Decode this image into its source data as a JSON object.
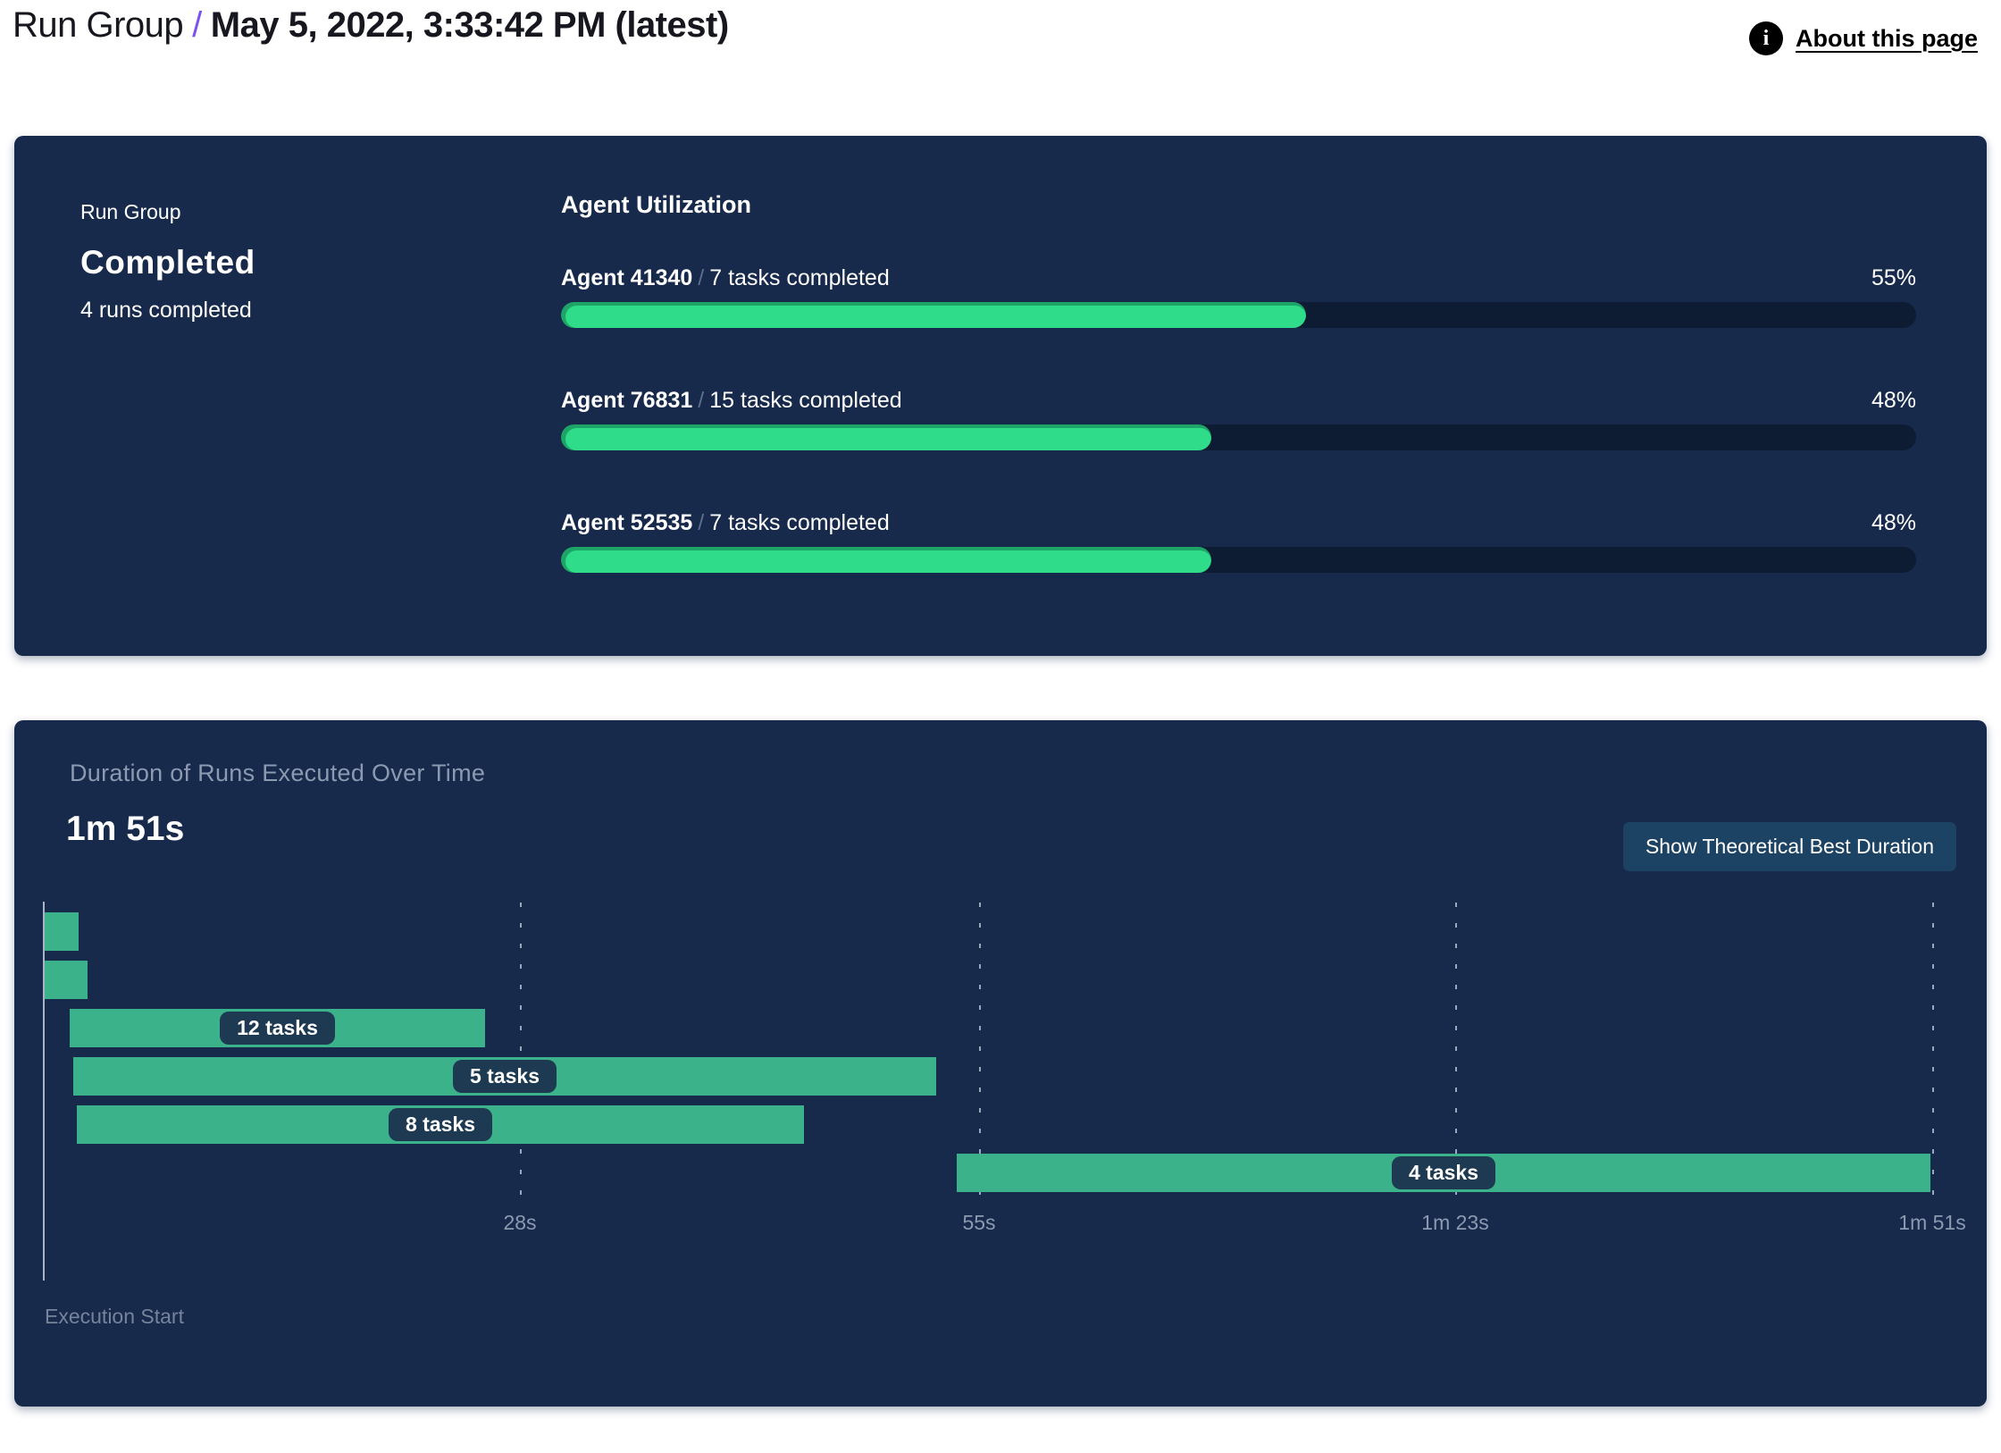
{
  "header": {
    "breadcrumb_root": "Run Group",
    "breadcrumb_sep": "/",
    "title": "May 5, 2022, 3:33:42 PM (latest)",
    "about_label": "About this page",
    "info_icon_glyph": "i"
  },
  "run_group_panel": {
    "label": "Run Group",
    "status": "Completed",
    "runs_completed": "4 runs completed",
    "utilization_title": "Agent Utilization",
    "agents": [
      {
        "name": "Agent 41340",
        "slash": "/",
        "tasks": "7 tasks completed",
        "percent": 55,
        "percent_label": "55%"
      },
      {
        "name": "Agent 76831",
        "slash": "/",
        "tasks": "15 tasks completed",
        "percent": 48,
        "percent_label": "48%"
      },
      {
        "name": "Agent 52535",
        "slash": "/",
        "tasks": "7 tasks completed",
        "percent": 48,
        "percent_label": "48%"
      }
    ]
  },
  "duration_panel": {
    "title": "Duration of Runs Executed Over Time",
    "total_duration": "1m 51s",
    "button_label": "Show Theoretical Best Duration",
    "execution_start_label": "Execution Start"
  },
  "chart_data": {
    "type": "bar",
    "subtype": "gantt-timeline",
    "title": "Duration of Runs Executed Over Time",
    "total_duration_label": "1m 51s",
    "x_unit": "seconds",
    "xlim": [
      0,
      111
    ],
    "grid": "dashed-vertical",
    "x_ticks": [
      {
        "t": 28,
        "label": "28s"
      },
      {
        "t": 55,
        "label": "55s"
      },
      {
        "t": 83,
        "label": "1m 23s"
      },
      {
        "t": 111,
        "label": "1m 51s"
      }
    ],
    "runs": [
      {
        "start_s": 0.1,
        "end_s": 2.1,
        "label": ""
      },
      {
        "start_s": 0.1,
        "end_s": 2.6,
        "label": ""
      },
      {
        "start_s": 1.6,
        "end_s": 26.0,
        "label": "12 tasks"
      },
      {
        "start_s": 1.8,
        "end_s": 52.5,
        "label": "5 tasks"
      },
      {
        "start_s": 2.0,
        "end_s": 44.7,
        "label": "8 tasks"
      },
      {
        "start_s": 53.7,
        "end_s": 110.9,
        "label": "4 tasks"
      }
    ],
    "x_axis_origin_label": "Execution Start",
    "bar_color": "#3cb28b",
    "label_pill_color": "#1d3a52"
  },
  "colors": {
    "panel_bg": "#172a4b",
    "progress_track": "#0e1c33",
    "progress_fill": "#2edc8a",
    "progress_fill_rim": "#1fa468",
    "accent_purple": "#7b52f0",
    "muted_text": "#8b9ab1",
    "button_bg": "#1c4264"
  }
}
